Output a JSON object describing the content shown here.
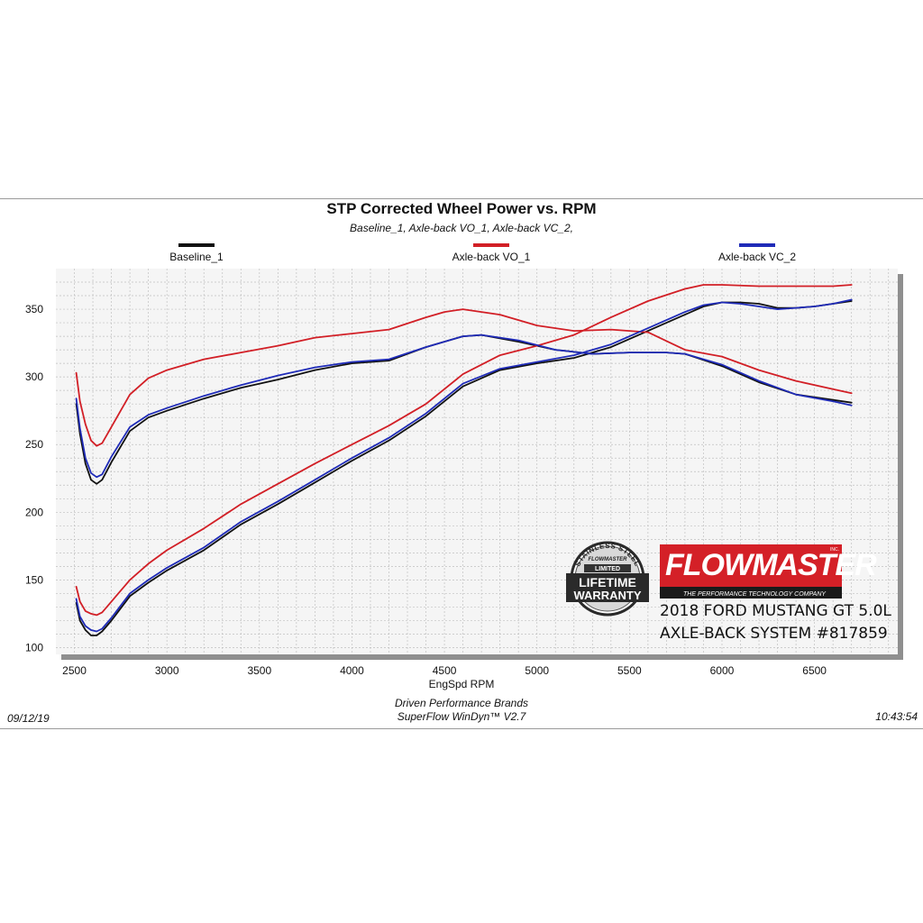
{
  "chart_data": {
    "type": "line",
    "title": "STP Corrected Wheel Power vs. RPM",
    "subtitle": "Baseline_1, Axle-back VO_1, Axle-back VC_2,",
    "xlabel": "EngSpd  RPM",
    "ylabel": "",
    "xlim": [
      2400,
      6950
    ],
    "ylim": [
      95,
      380
    ],
    "x_ticks": [
      2500,
      3000,
      3500,
      4000,
      4500,
      5000,
      5500,
      6000,
      6500
    ],
    "y_ticks": [
      100,
      150,
      200,
      250,
      300,
      350
    ],
    "grid": true,
    "legend_position": "top",
    "series": [
      {
        "name": "Baseline_1",
        "color": "#111111",
        "torque": {
          "x": [
            2510,
            2530,
            2560,
            2590,
            2620,
            2650,
            2700,
            2800,
            2900,
            3000,
            3200,
            3400,
            3600,
            3800,
            4000,
            4200,
            4400,
            4600,
            4700,
            4900,
            5100,
            5300,
            5500,
            5700,
            5800,
            6000,
            6200,
            6400,
            6600,
            6700
          ],
          "y": [
            280,
            258,
            236,
            224,
            221,
            224,
            237,
            260,
            270,
            275,
            284,
            292,
            298,
            305,
            310,
            312,
            322,
            330,
            331,
            326,
            320,
            317,
            318,
            318,
            317,
            308,
            296,
            287,
            283,
            281
          ]
        },
        "power": {
          "x": [
            2510,
            2530,
            2560,
            2590,
            2620,
            2650,
            2700,
            2800,
            2900,
            3000,
            3200,
            3400,
            3600,
            3800,
            4000,
            4200,
            4400,
            4600,
            4800,
            5000,
            5200,
            5400,
            5600,
            5800,
            5900,
            6000,
            6100,
            6200,
            6300,
            6400,
            6500,
            6600,
            6700
          ],
          "y": [
            133,
            120,
            113,
            109,
            109,
            112,
            120,
            138,
            148,
            157,
            172,
            191,
            206,
            222,
            238,
            253,
            271,
            293,
            305,
            310,
            314,
            322,
            334,
            346,
            352,
            355,
            355,
            354,
            351,
            351,
            352,
            354,
            356
          ]
        }
      },
      {
        "name": "Axle-back VO_1",
        "color": "#d21f26",
        "torque": {
          "x": [
            2510,
            2530,
            2560,
            2590,
            2620,
            2650,
            2700,
            2800,
            2900,
            3000,
            3200,
            3400,
            3600,
            3800,
            4000,
            4200,
            4400,
            4500,
            4600,
            4800,
            5000,
            5200,
            5400,
            5600,
            5800,
            6000,
            6200,
            6400,
            6600,
            6700
          ],
          "y": [
            303,
            282,
            265,
            253,
            249,
            251,
            263,
            287,
            299,
            305,
            313,
            318,
            323,
            329,
            332,
            335,
            344,
            348,
            350,
            346,
            338,
            334,
            335,
            333,
            320,
            315,
            305,
            297,
            291,
            288
          ]
        },
        "power": {
          "x": [
            2510,
            2530,
            2560,
            2590,
            2620,
            2650,
            2700,
            2800,
            2900,
            3000,
            3200,
            3400,
            3600,
            3800,
            4000,
            4200,
            4400,
            4600,
            4800,
            5000,
            5200,
            5400,
            5600,
            5800,
            5900,
            6000,
            6200,
            6400,
            6600,
            6700
          ],
          "y": [
            145,
            134,
            127,
            125,
            124,
            126,
            134,
            150,
            162,
            172,
            188,
            206,
            221,
            236,
            250,
            264,
            280,
            302,
            316,
            323,
            331,
            344,
            356,
            365,
            368,
            368,
            367,
            367,
            367,
            368
          ]
        }
      },
      {
        "name": "Axle-back VC_2",
        "color": "#1f2bb8",
        "torque": {
          "x": [
            2510,
            2530,
            2560,
            2590,
            2620,
            2650,
            2700,
            2800,
            2900,
            3000,
            3200,
            3400,
            3600,
            3800,
            4000,
            4200,
            4400,
            4600,
            4700,
            4900,
            5100,
            5300,
            5500,
            5700,
            5800,
            6000,
            6200,
            6400,
            6600,
            6700
          ],
          "y": [
            284,
            262,
            240,
            229,
            226,
            228,
            241,
            263,
            272,
            277,
            286,
            294,
            301,
            307,
            311,
            313,
            322,
            330,
            331,
            327,
            320,
            317,
            318,
            318,
            317,
            309,
            297,
            287,
            282,
            279
          ]
        },
        "power": {
          "x": [
            2510,
            2530,
            2560,
            2590,
            2620,
            2650,
            2700,
            2800,
            2900,
            3000,
            3200,
            3400,
            3600,
            3800,
            4000,
            4200,
            4400,
            4600,
            4800,
            5000,
            5200,
            5400,
            5600,
            5800,
            5900,
            6000,
            6100,
            6200,
            6300,
            6400,
            6500,
            6600,
            6700
          ],
          "y": [
            136,
            123,
            116,
            113,
            112,
            114,
            122,
            140,
            150,
            159,
            174,
            193,
            208,
            224,
            240,
            255,
            273,
            295,
            306,
            311,
            316,
            324,
            336,
            348,
            353,
            355,
            354,
            352,
            350,
            351,
            352,
            354,
            357
          ]
        }
      }
    ]
  },
  "footer": {
    "company": "Driven Performance Brands",
    "software": "SuperFlow WinDyn™  V2.7",
    "date": "09/12/19",
    "time": "10:43:54"
  },
  "branding": {
    "logo_word": "FLOWMASTER",
    "logo_mark": "INC.",
    "logo_tagline": "THE PERFORMANCE TECHNOLOGY COMPANY",
    "badge_top": "STAINLESS STEEL",
    "badge_brand": "FLOWMASTER",
    "badge_limited": "LIMITED",
    "badge_line1": "LIFETIME",
    "badge_line2": "WARRANTY",
    "caption_line1": "2018 FORD MUSTANG GT 5.0L",
    "caption_line2": "AXLE-BACK SYSTEM #817859"
  },
  "colors": {
    "plot_bg": "#f5f5f5",
    "grid": "#c0c0c0",
    "brand_red": "#d42027"
  }
}
